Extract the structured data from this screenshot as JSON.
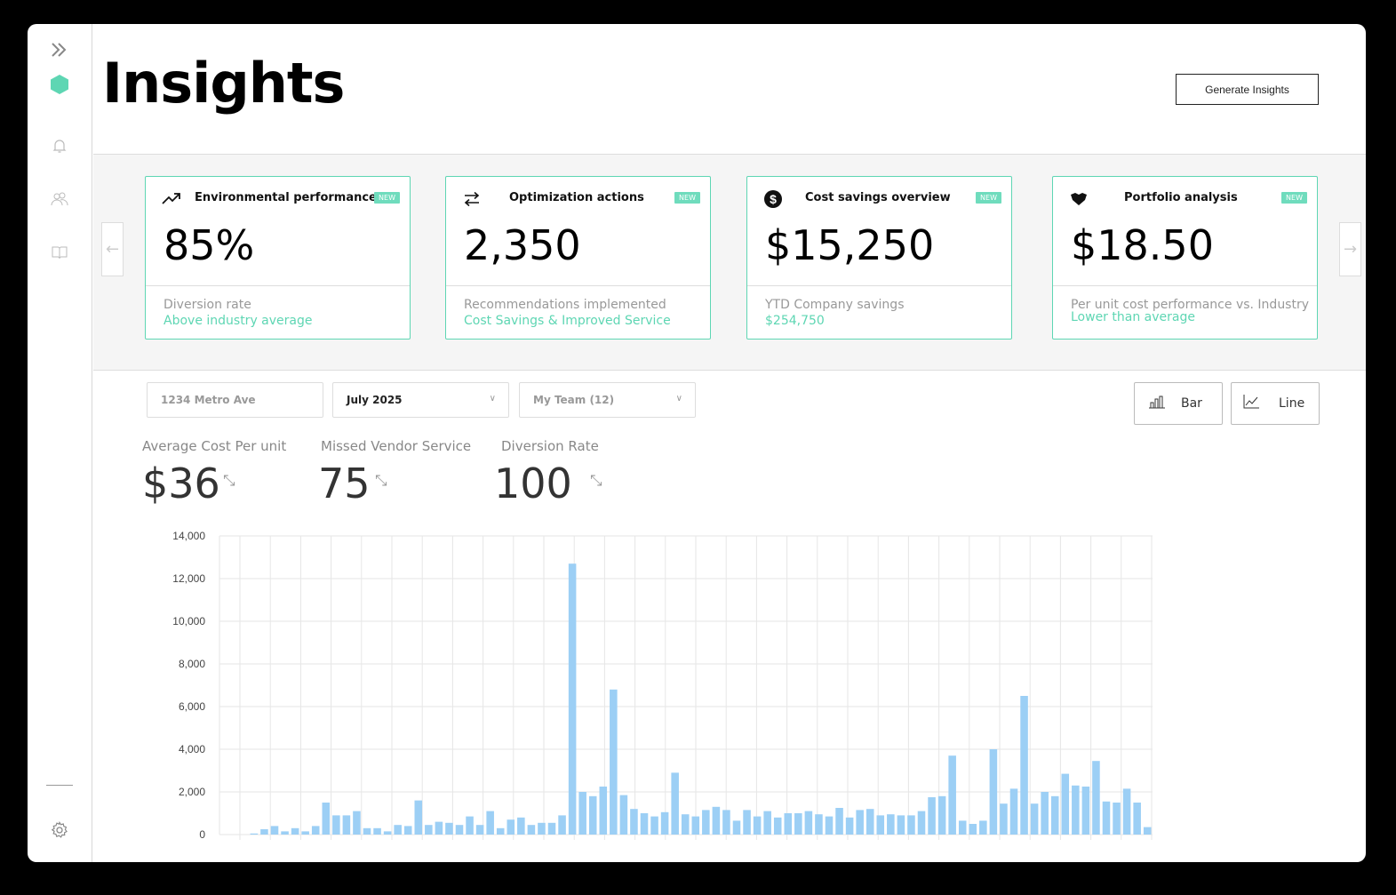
{
  "header": {
    "title": "Insights",
    "generate_label": "Generate Insights"
  },
  "sidebar": {
    "items": [
      "expand",
      "logo",
      "notifications",
      "team",
      "library",
      "settings"
    ]
  },
  "cards": [
    {
      "icon": "trending-up-icon",
      "title": "Environmental performance",
      "badge": "NEW",
      "value": "85%",
      "subtitle": "Diversion rate",
      "accent": "Above industry average"
    },
    {
      "icon": "swap-arrows-icon",
      "title": "Optimization actions",
      "badge": "NEW",
      "value": "2,350",
      "subtitle": "Recommendations implemented",
      "accent": "Cost Savings & Improved Service"
    },
    {
      "icon": "dollar-circle-icon",
      "title": "Cost savings overview",
      "badge": "NEW",
      "value": "$15,250",
      "subtitle": "YTD Company savings",
      "accent": "$254,750"
    },
    {
      "icon": "handshake-icon",
      "title": "Portfolio analysis",
      "badge": "NEW",
      "value": "$18.50",
      "subtitle": "Per unit cost performance vs. Industry",
      "accent": "Lower than average"
    }
  ],
  "filters": {
    "location_placeholder": "1234 Metro Ave",
    "month": "July 2025",
    "team": "My Team (12)"
  },
  "toggle": {
    "bar": "Bar",
    "line": "Line"
  },
  "metrics": [
    {
      "label": "Average Cost Per unit",
      "value": "$36"
    },
    {
      "label": "Missed Vendor Service",
      "value": "75"
    },
    {
      "label": "Diversion Rate",
      "value": "100"
    }
  ],
  "colors": {
    "accent": "#5ed6b3",
    "bar": "#9ccff5"
  },
  "chart_data": {
    "type": "bar",
    "title": "",
    "xlabel": "",
    "ylabel": "",
    "ylim": [
      0,
      14000
    ],
    "yticks": [
      "0",
      "2,000",
      "4,000",
      "6,000",
      "8,000",
      "10,000",
      "12,000",
      "14,000"
    ],
    "values": [
      0,
      0,
      50,
      250,
      400,
      150,
      300,
      150,
      400,
      1500,
      900,
      900,
      1100,
      300,
      300,
      150,
      450,
      400,
      1600,
      450,
      600,
      550,
      450,
      850,
      450,
      1100,
      300,
      700,
      800,
      450,
      550,
      550,
      900,
      12700,
      2000,
      1800,
      2250,
      6800,
      1850,
      1200,
      1000,
      850,
      1050,
      2900,
      950,
      850,
      1150,
      1300,
      1150,
      650,
      1150,
      850,
      1100,
      800,
      1000,
      1000,
      1100,
      950,
      850,
      1250,
      800,
      1150,
      1200,
      900,
      950,
      900,
      900,
      1100,
      1750,
      1800,
      3700,
      650,
      500,
      650,
      4000,
      1450,
      2150,
      6500,
      1450,
      2000,
      1800,
      2850,
      2300,
      2250,
      3450,
      1550,
      1500,
      2150,
      1500,
      350
    ]
  }
}
